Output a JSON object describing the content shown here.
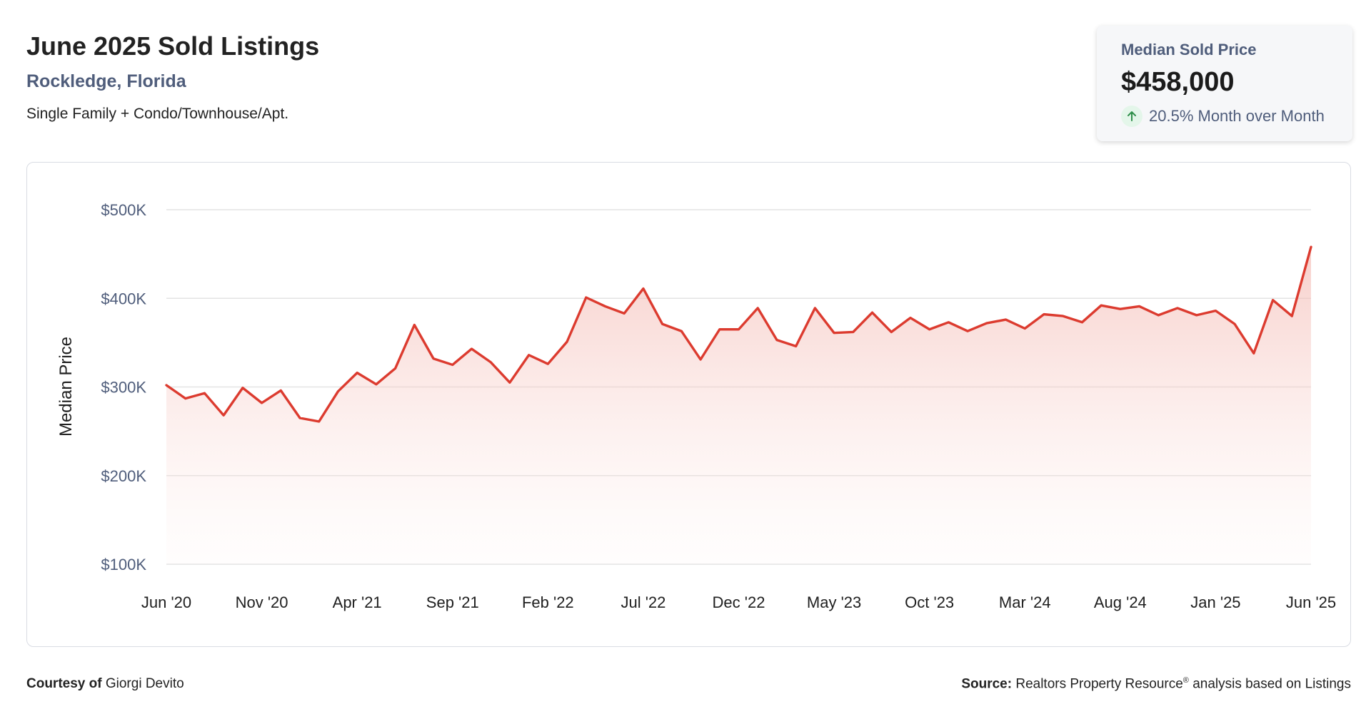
{
  "header": {
    "title": "June 2025 Sold Listings",
    "location": "Rockledge, Florida",
    "property_types": "Single Family + Condo/Townhouse/Apt."
  },
  "stat_card": {
    "label": "Median Sold Price",
    "value": "$458,000",
    "change": "20.5% Month over Month",
    "change_direction": "up",
    "change_icon": "arrow-up-icon"
  },
  "colors": {
    "line": "#dc3b2f",
    "fill": "#f7cfca",
    "grid": "#e3e3e3",
    "label": "#4f5d7b",
    "positive": "#2f8f4b"
  },
  "footer": {
    "courtesy_label": "Courtesy of",
    "courtesy_name": "Giorgi Devito",
    "source_label": "Source:",
    "source_text": "Realtors Property Resource",
    "source_mark": "®",
    "source_suffix": "analysis based on Listings"
  },
  "chart_data": {
    "type": "area",
    "ylabel": "Median Price",
    "xlabel": "",
    "ylim": [
      100000,
      500000
    ],
    "y_ticks": [
      500000,
      400000,
      300000,
      200000,
      100000
    ],
    "y_tick_labels": [
      "$500K",
      "$400K",
      "$300K",
      "$200K",
      "$100K"
    ],
    "x_tick_labels": [
      "Jun '20",
      "Nov '20",
      "Apr '21",
      "Sep '21",
      "Feb '22",
      "Jul '22",
      "Dec '22",
      "May '23",
      "Oct '23",
      "Mar '24",
      "Aug '24",
      "Jan '25",
      "Jun '25"
    ],
    "x": [
      "Jun '20",
      "Jul '20",
      "Aug '20",
      "Sep '20",
      "Oct '20",
      "Nov '20",
      "Dec '20",
      "Jan '21",
      "Feb '21",
      "Mar '21",
      "Apr '21",
      "May '21",
      "Jun '21",
      "Jul '21",
      "Aug '21",
      "Sep '21",
      "Oct '21",
      "Nov '21",
      "Dec '21",
      "Jan '22",
      "Feb '22",
      "Mar '22",
      "Apr '22",
      "May '22",
      "Jun '22",
      "Jul '22",
      "Aug '22",
      "Sep '22",
      "Oct '22",
      "Nov '22",
      "Dec '22",
      "Jan '23",
      "Feb '23",
      "Mar '23",
      "Apr '23",
      "May '23",
      "Jun '23",
      "Jul '23",
      "Aug '23",
      "Sep '23",
      "Oct '23",
      "Nov '23",
      "Dec '23",
      "Jan '24",
      "Feb '24",
      "Mar '24",
      "Apr '24",
      "May '24",
      "Jun '24",
      "Jul '24",
      "Aug '24",
      "Sep '24",
      "Oct '24",
      "Nov '24",
      "Dec '24",
      "Jan '25",
      "Feb '25",
      "Mar '25",
      "Apr '25",
      "May '25",
      "Jun '25"
    ],
    "values": [
      302000,
      287000,
      293000,
      268000,
      299000,
      282000,
      296000,
      265000,
      261000,
      295000,
      316000,
      303000,
      321000,
      370000,
      332000,
      325000,
      343000,
      328000,
      305000,
      336000,
      326000,
      351000,
      401000,
      391000,
      383000,
      411000,
      371000,
      363000,
      331000,
      365000,
      365000,
      389000,
      353000,
      346000,
      389000,
      361000,
      362000,
      384000,
      362000,
      378000,
      365000,
      373000,
      363000,
      372000,
      376000,
      366000,
      382000,
      380000,
      373000,
      392000,
      388000,
      391000,
      381000,
      389000,
      381000,
      386000,
      371000,
      338000,
      398000,
      380000,
      458000
    ],
    "grid": true,
    "legend": "none"
  }
}
